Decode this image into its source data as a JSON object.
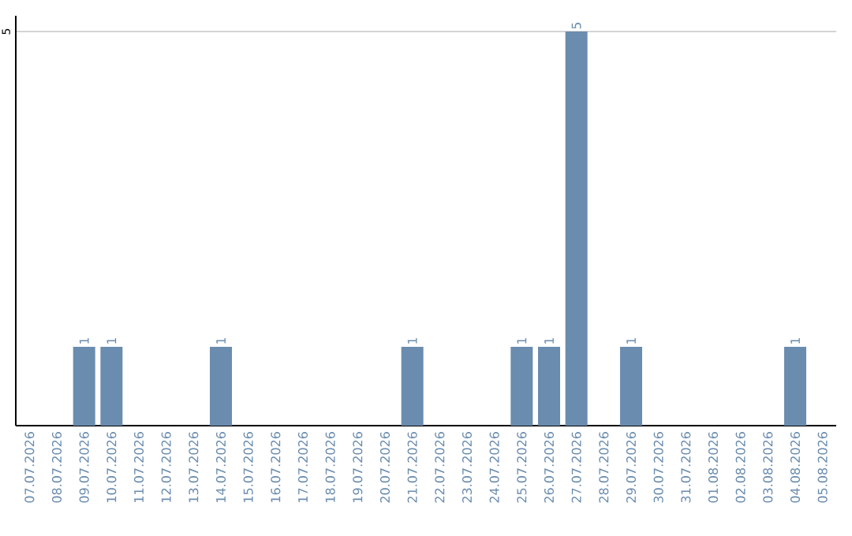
{
  "chart_data": {
    "type": "bar",
    "categories": [
      "07.07.2026",
      "08.07.2026",
      "09.07.2026",
      "10.07.2026",
      "11.07.2026",
      "12.07.2026",
      "13.07.2026",
      "14.07.2026",
      "15.07.2026",
      "16.07.2026",
      "17.07.2026",
      "18.07.2026",
      "19.07.2026",
      "20.07.2026",
      "21.07.2026",
      "22.07.2026",
      "23.07.2026",
      "24.07.2026",
      "25.07.2026",
      "26.07.2026",
      "27.07.2026",
      "28.07.2026",
      "29.07.2026",
      "30.07.2026",
      "31.07.2026",
      "01.08.2026",
      "02.08.2026",
      "03.08.2026",
      "04.08.2026",
      "05.08.2026"
    ],
    "values": [
      0,
      0,
      1,
      1,
      0,
      0,
      0,
      1,
      0,
      0,
      0,
      0,
      0,
      0,
      1,
      0,
      0,
      0,
      1,
      1,
      5,
      0,
      1,
      0,
      0,
      0,
      0,
      0,
      1,
      0
    ],
    "value_labels": [
      null,
      null,
      "1",
      "1",
      null,
      null,
      null,
      "1",
      null,
      null,
      null,
      null,
      null,
      null,
      "1",
      null,
      null,
      null,
      "1",
      "1",
      "5",
      null,
      "1",
      null,
      null,
      null,
      null,
      null,
      "1",
      null
    ],
    "color": "#6a8caf",
    "ylim": [
      0,
      5.2
    ],
    "yticks": [
      5
    ],
    "grid": "y"
  }
}
